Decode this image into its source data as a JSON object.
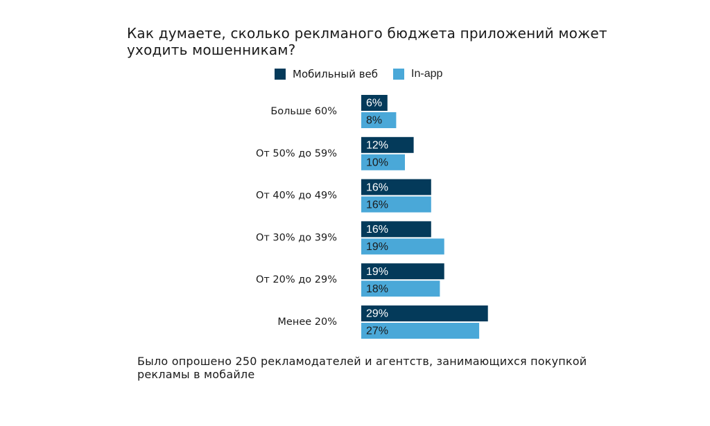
{
  "chart_data": {
    "type": "bar",
    "orientation": "horizontal",
    "title": "Как думаете, сколько реклманого бюджета приложений может уходить мошенникам?",
    "categories": [
      "Больше 60%",
      "От 50% до 59%",
      "От 40% до 49%",
      "От 30% до 39%",
      "От 20% до 29%",
      "Менее 20%"
    ],
    "series": [
      {
        "name": "Мобильный веб",
        "values": [
          6,
          12,
          16,
          16,
          19,
          29
        ],
        "labels": [
          "6%",
          "12%",
          "16%",
          "16%",
          "19%",
          "29%"
        ],
        "color": "#043a5a",
        "label_color": "#ffffff"
      },
      {
        "name": "In-app",
        "values": [
          8,
          10,
          16,
          19,
          18,
          27
        ],
        "labels": [
          "8%",
          "10%",
          "16%",
          "19%",
          "18%",
          "27%"
        ],
        "color": "#4aa8d8",
        "label_color": "#1a1a1a"
      }
    ],
    "grid": false,
    "legend": "top",
    "xlim": [
      0,
      30
    ]
  },
  "footnote": "Было опрошено 250 рекламодателей и агентств, занимающихся покупкой рекламы в мобайле"
}
